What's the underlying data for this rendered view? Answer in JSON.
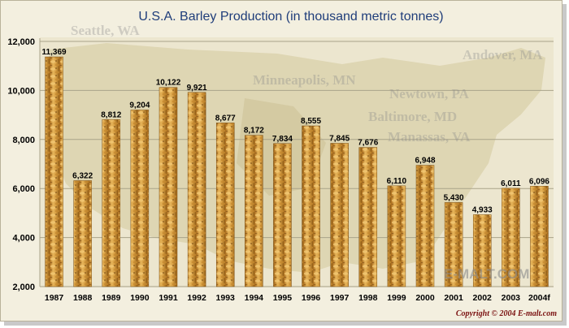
{
  "chart_data": {
    "type": "bar",
    "title": "U.S.A. Barley Production (in thousand metric tonnes)",
    "xlabel": "",
    "ylabel": "",
    "ylim": [
      2000,
      12000
    ],
    "yticks": [
      2000,
      4000,
      6000,
      8000,
      10000,
      12000
    ],
    "ytick_labels": [
      "2,000",
      "4,000",
      "6,000",
      "8,000",
      "10,000",
      "12,000"
    ],
    "grid": true,
    "legend": "none",
    "categories": [
      "1987",
      "1988",
      "1989",
      "1990",
      "1991",
      "1992",
      "1993",
      "1994",
      "1995",
      "1996",
      "1997",
      "1998",
      "1999",
      "2000",
      "2001",
      "2002",
      "2003",
      "2004f"
    ],
    "values": [
      11369,
      6322,
      8812,
      9204,
      10122,
      9921,
      8677,
      8172,
      7834,
      8555,
      7845,
      7676,
      6110,
      6948,
      5430,
      4933,
      6011,
      6096
    ],
    "value_labels": [
      "11,369",
      "6,322",
      "8,812",
      "9,204",
      "10,122",
      "9,921",
      "8,677",
      "8,172",
      "7,834",
      "8,555",
      "7,845",
      "7,676",
      "6,110",
      "6,948",
      "5,430",
      "4,933",
      "6,011",
      "6,096"
    ],
    "bar_color": "#d4a040"
  },
  "background_labels": [
    "Seattle, WA",
    "Minneapolis, MN",
    "Andover, MA",
    "Newtown, PA",
    "Baltimore, MD",
    "Manassas, VA"
  ],
  "brand": "E-MALT.COM",
  "copyright": "Copyright © 2004 E-malt.com"
}
